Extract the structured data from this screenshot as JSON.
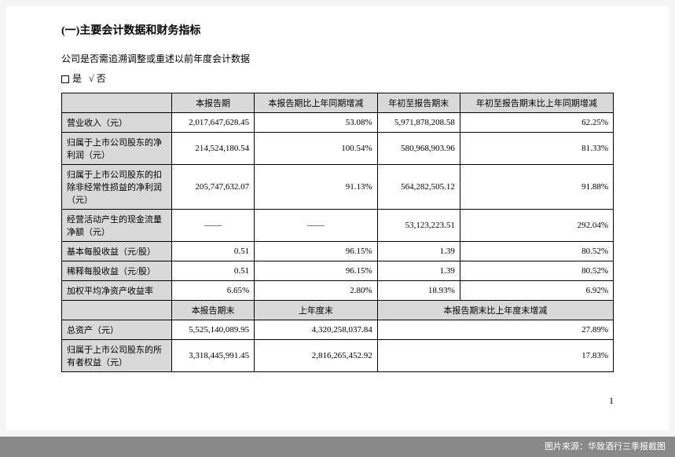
{
  "title": "(一)主要会计数据和财务指标",
  "subtitle": "公司是否需追溯调整或重述以前年度会计数据",
  "checkbox": {
    "yes": "是",
    "no": "否",
    "check": "√"
  },
  "headers": {
    "col1": "本报告期",
    "col2": "本报告期比上年同期增减",
    "col3": "年初至报告期末",
    "col4": "年初至报告期末比上年同期增减"
  },
  "rows": [
    {
      "label": "营业收入（元）",
      "c1": "2,017,647,628.45",
      "c2": "53.08%",
      "c3": "5,971,878,208.58",
      "c4": "62.25%"
    },
    {
      "label": "归属于上市公司股东的净利润（元）",
      "c1": "214,524,180.54",
      "c2": "100.54%",
      "c3": "580,968,903.96",
      "c4": "81.33%"
    },
    {
      "label": "归属于上市公司股东的扣除非经常性损益的净利润（元）",
      "c1": "205,747,632.07",
      "c2": "91.13%",
      "c3": "564,282,505.12",
      "c4": "91.88%"
    },
    {
      "label": "经营活动产生的现金流量净额（元）",
      "c1": "——",
      "c2": "——",
      "c3": "53,123,223.51",
      "c4": "292.04%"
    },
    {
      "label": "基本每股收益（元/股）",
      "c1": "0.51",
      "c2": "96.15%",
      "c3": "1.39",
      "c4": "80.52%"
    },
    {
      "label": "稀释每股收益（元/股）",
      "c1": "0.51",
      "c2": "96.15%",
      "c3": "1.39",
      "c4": "80.52%"
    },
    {
      "label": "加权平均净资产收益率",
      "c1": "6.65%",
      "c2": "2.80%",
      "c3": "18.93%",
      "c4": "6.92%"
    }
  ],
  "headers2": {
    "col1": "本报告期末",
    "col2": "上年度末",
    "col3": "本报告期末比上年度末增减"
  },
  "rows2": [
    {
      "label": "总资产（元）",
      "c1": "5,525,140,089.95",
      "c2": "4,320,258,037.84",
      "c3": "27.89%"
    },
    {
      "label": "归属于上市公司股东的所有者权益（元）",
      "c1": "3,318,445,991.45",
      "c2": "2,816,265,452.92",
      "c3": "17.83%"
    }
  ],
  "pageNum": "1",
  "footer": "图片来源：华致酒行三季报截图"
}
